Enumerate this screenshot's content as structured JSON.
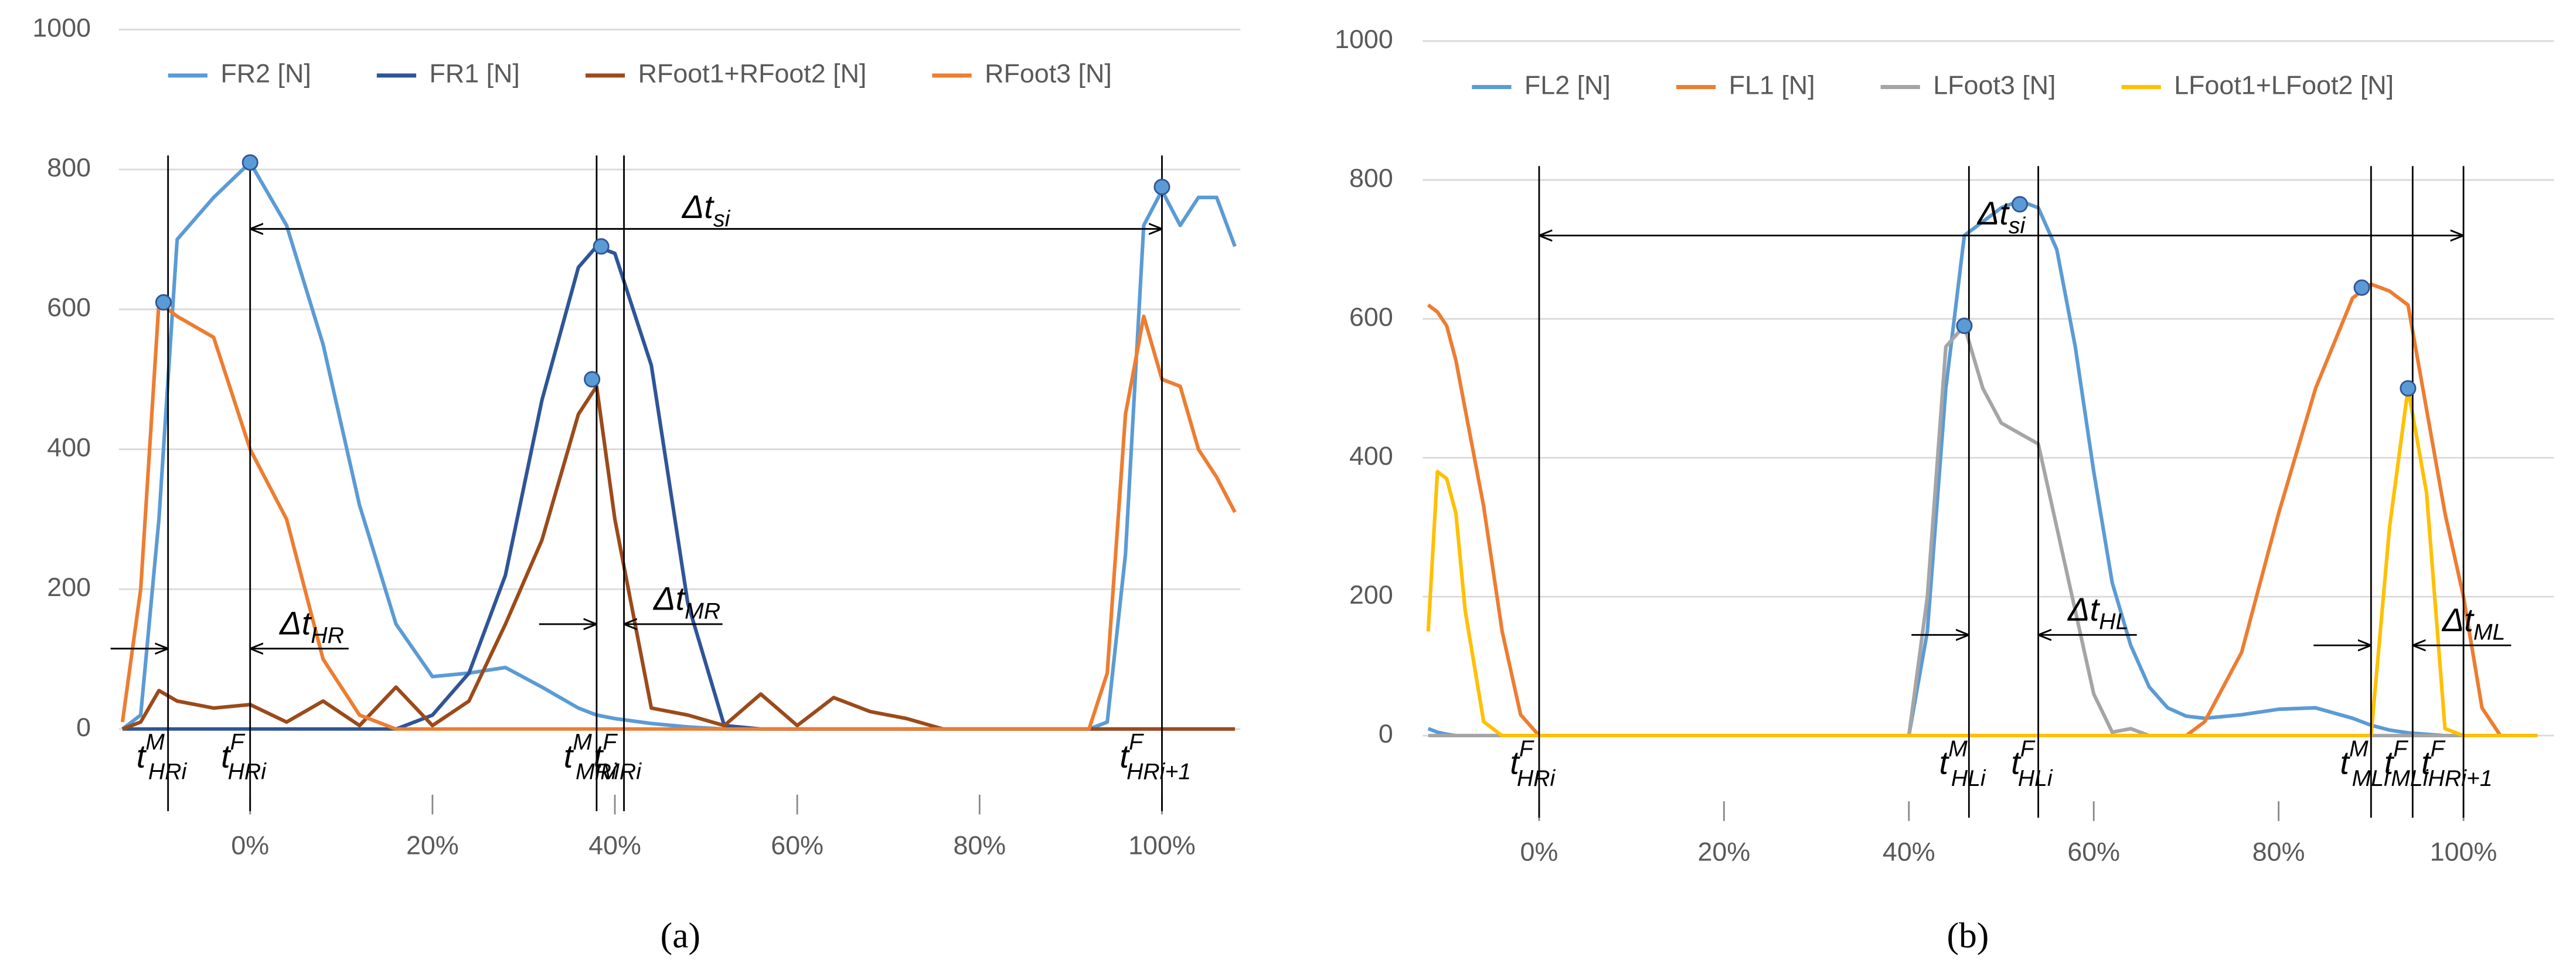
{
  "chart_data": [
    {
      "type": "line",
      "panel_label": "(a)",
      "xlim": [
        -14.4,
        108.6
      ],
      "ylim": [
        0,
        1000
      ],
      "xticks": [
        {
          "value": 0,
          "label": "0%"
        },
        {
          "value": 20,
          "label": "20%"
        },
        {
          "value": 40,
          "label": "40%"
        },
        {
          "value": 60,
          "label": "60%"
        },
        {
          "value": 80,
          "label": "80%"
        },
        {
          "value": 100,
          "label": "100%"
        }
      ],
      "yticks": [
        0,
        200,
        400,
        600,
        800,
        1000
      ],
      "grid": true,
      "legend": "top",
      "x": [
        -14,
        -12,
        -10,
        -8,
        -4,
        0,
        4,
        8,
        12,
        16,
        20,
        24,
        28,
        32,
        36,
        38,
        40,
        44,
        48,
        52,
        56,
        60,
        64,
        68,
        72,
        76,
        80,
        84,
        88,
        92,
        94,
        96,
        98,
        100,
        102,
        104,
        106,
        108
      ],
      "series": [
        {
          "name": "FR2 [N]",
          "color": "#5b9bd5",
          "values": [
            0,
            20,
            300,
            700,
            760,
            810,
            720,
            550,
            320,
            150,
            75,
            80,
            88,
            60,
            30,
            20,
            15,
            8,
            3,
            0,
            0,
            0,
            0,
            0,
            0,
            0,
            0,
            0,
            0,
            0,
            10,
            250,
            720,
            770,
            720,
            760,
            760,
            690
          ]
        },
        {
          "name": "FR1 [N]",
          "color": "#2f5597",
          "values": [
            0,
            0,
            0,
            0,
            0,
            0,
            0,
            0,
            0,
            0,
            20,
            80,
            220,
            470,
            660,
            690,
            680,
            520,
            180,
            5,
            0,
            0,
            0,
            0,
            0,
            0,
            0,
            0,
            0,
            0,
            0,
            0,
            0,
            0,
            0,
            0,
            0,
            0
          ]
        },
        {
          "name": "RFoot1+RFoot2 [N]",
          "color": "#9c4a1a",
          "values": [
            0,
            10,
            55,
            40,
            30,
            35,
            10,
            40,
            5,
            60,
            5,
            40,
            150,
            270,
            450,
            490,
            300,
            30,
            20,
            5,
            50,
            5,
            45,
            25,
            15,
            0,
            0,
            0,
            0,
            0,
            0,
            0,
            0,
            0,
            0,
            0,
            0,
            0
          ]
        },
        {
          "name": "RFoot3 [N]",
          "color": "#ed7d31",
          "values": [
            10,
            200,
            610,
            590,
            560,
            400,
            300,
            100,
            20,
            0,
            0,
            0,
            0,
            0,
            0,
            0,
            0,
            0,
            0,
            0,
            0,
            0,
            0,
            0,
            0,
            0,
            0,
            0,
            0,
            0,
            80,
            450,
            590,
            500,
            490,
            400,
            360,
            310
          ]
        }
      ],
      "markers": {
        "x": [
          -9.5,
          0,
          37.5,
          38.5,
          100
        ],
        "y": [
          610,
          810,
          500,
          690,
          775
        ]
      },
      "events": [
        {
          "x": -9,
          "base": "t",
          "sup": "M",
          "sub": "HRi"
        },
        {
          "x": 0,
          "base": "t",
          "sup": "F",
          "sub": "HRi"
        },
        {
          "x": 38,
          "base": "t",
          "sup": "M",
          "sub": "MRi"
        },
        {
          "x": 41,
          "base": "t",
          "sup": "F",
          "sub": "MRi"
        },
        {
          "x": 100,
          "base": "t",
          "sup": "F",
          "sub": "HRi+1"
        }
      ],
      "intervals": [
        {
          "from": 0,
          "to": 100,
          "y": 715,
          "base": "Δt",
          "sub": "si"
        },
        {
          "from": -9,
          "to": 0,
          "y": 115,
          "base": "Δt",
          "sub": "HR"
        },
        {
          "from": 38,
          "to": 41,
          "y": 150,
          "base": "Δt",
          "sub": "MR"
        }
      ]
    },
    {
      "type": "line",
      "panel_label": "(b)",
      "xlim": [
        -12.6,
        109.8
      ],
      "ylim": [
        0,
        1000
      ],
      "xticks": [
        {
          "value": 0,
          "label": "0%"
        },
        {
          "value": 20,
          "label": "20%"
        },
        {
          "value": 40,
          "label": "40%"
        },
        {
          "value": 60,
          "label": "60%"
        },
        {
          "value": 80,
          "label": "80%"
        },
        {
          "value": 100,
          "label": "100%"
        }
      ],
      "yticks": [
        0,
        200,
        400,
        600,
        800,
        1000
      ],
      "grid": true,
      "legend": "top",
      "x": [
        -12,
        -11,
        -10,
        -9,
        -8,
        -6,
        -4,
        -2,
        0,
        10,
        20,
        30,
        40,
        42,
        44,
        46,
        48,
        50,
        52,
        54,
        56,
        58,
        60,
        62,
        64,
        66,
        68,
        70,
        72,
        76,
        80,
        84,
        88,
        90,
        92,
        94,
        96,
        98,
        100,
        102,
        104,
        108
      ],
      "series": [
        {
          "name": "FL2 [N]",
          "color": "#5b9bd5",
          "values": [
            10,
            5,
            2,
            0,
            0,
            0,
            0,
            0,
            0,
            0,
            0,
            0,
            0,
            150,
            500,
            720,
            740,
            760,
            770,
            760,
            700,
            560,
            380,
            220,
            130,
            70,
            40,
            28,
            25,
            30,
            38,
            40,
            25,
            15,
            8,
            4,
            2,
            0,
            0,
            0,
            0,
            0
          ]
        },
        {
          "name": "FL1 [N]",
          "color": "#ed7d31",
          "values": [
            620,
            610,
            590,
            540,
            470,
            330,
            150,
            30,
            0,
            0,
            0,
            0,
            0,
            0,
            0,
            0,
            0,
            0,
            0,
            0,
            0,
            0,
            0,
            0,
            0,
            0,
            0,
            0,
            20,
            120,
            320,
            500,
            630,
            650,
            640,
            620,
            470,
            320,
            200,
            40,
            0,
            0
          ]
        },
        {
          "name": "LFoot3 [N]",
          "color": "#a5a5a5",
          "values": [
            0,
            0,
            0,
            0,
            0,
            0,
            0,
            0,
            0,
            0,
            0,
            0,
            0,
            200,
            560,
            590,
            500,
            450,
            435,
            420,
            300,
            180,
            60,
            5,
            10,
            0,
            0,
            0,
            0,
            0,
            0,
            0,
            0,
            0,
            0,
            0,
            0,
            0,
            0,
            0,
            0,
            0
          ]
        },
        {
          "name": "LFoot1+LFoot2 [N]",
          "color": "#ffc000",
          "values": [
            150,
            380,
            370,
            320,
            180,
            20,
            0,
            0,
            0,
            0,
            0,
            0,
            0,
            0,
            0,
            0,
            0,
            0,
            0,
            0,
            0,
            0,
            0,
            0,
            0,
            0,
            0,
            0,
            0,
            0,
            0,
            0,
            0,
            0,
            300,
            500,
            350,
            10,
            0,
            0,
            0,
            0
          ]
        }
      ],
      "markers": {
        "x": [
          46,
          52,
          89,
          94
        ],
        "y": [
          590,
          765,
          645,
          500
        ]
      },
      "events": [
        {
          "x": 0,
          "base": "t",
          "sup": "F",
          "sub": "HRi"
        },
        {
          "x": 46.5,
          "base": "t",
          "sup": "M",
          "sub": "HLi"
        },
        {
          "x": 54,
          "base": "t",
          "sup": "F",
          "sub": "HLi"
        },
        {
          "x": 90,
          "base": "t",
          "sup": "M",
          "sub": "MLi"
        },
        {
          "x": 94.5,
          "base": "t",
          "sup": "F",
          "sub": "MLi"
        },
        {
          "x": 100,
          "base": "t",
          "sup": "F",
          "sub": "HRi+1"
        }
      ],
      "intervals": [
        {
          "from": 0,
          "to": 100,
          "y": 720,
          "base": "Δt",
          "sub": "si"
        },
        {
          "from": 46.5,
          "to": 54,
          "y": 145,
          "base": "Δt",
          "sub": "HL"
        },
        {
          "from": 90,
          "to": 94.5,
          "y": 130,
          "base": "Δt",
          "sub": "ML"
        }
      ]
    }
  ]
}
